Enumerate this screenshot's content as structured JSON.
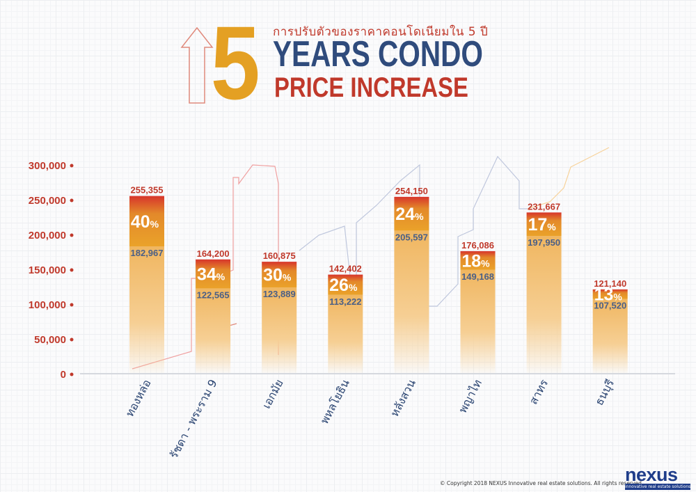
{
  "header": {
    "digit": "5",
    "subtitle_th": "การปรับตัวของราคาคอนโดเนียมใน 5 ปี",
    "title_line1": "YEARS CONDO",
    "title_line2": "PRICE INCREASE"
  },
  "chart_data": {
    "type": "bar",
    "title": "5 YEARS CONDO PRICE INCREASE",
    "ylim": [
      0,
      300000
    ],
    "yticks": [
      0,
      50000,
      100000,
      150000,
      200000,
      250000,
      300000
    ],
    "ytick_labels": [
      "0",
      "50,000",
      "100,000",
      "150,000",
      "200,000",
      "250,000",
      "300,000"
    ],
    "categories": [
      "ทองหล่อ",
      "รัชดา - พระราม 9",
      "เอกมัย",
      "พหลโยธิน",
      "หลังสวน",
      "พญาไท",
      "สาทร",
      "ธนบุรี"
    ],
    "series": [
      {
        "name": "before",
        "values": [
          182967,
          122565,
          123889,
          113222,
          205597,
          149168,
          197950,
          107520
        ],
        "labels": [
          "182,967",
          "122,565",
          "123,889",
          "113,222",
          "205,597",
          "149,168",
          "197,950",
          "107,520"
        ]
      },
      {
        "name": "after",
        "values": [
          255355,
          164200,
          160875,
          142402,
          254150,
          176086,
          231667,
          121140
        ],
        "labels": [
          "255,355",
          "164,200",
          "160,875",
          "142,402",
          "254,150",
          "176,086",
          "231,667",
          "121,140"
        ]
      }
    ],
    "percent_labels": [
      "40",
      "34",
      "30",
      "26",
      "24",
      "18",
      "17",
      "13"
    ],
    "percent_sign": "%"
  },
  "footer": {
    "copyright": "© Copyright 2018 NEXUS Innovative real estate solutions. All rights reserved.",
    "logo": "nexus",
    "logo_tagline": "innovative real estate solutions"
  },
  "colors": {
    "orange": "#e4a023",
    "red": "#c0392b",
    "navy": "#2f4b7c",
    "value_blue": "#4a5f86"
  }
}
